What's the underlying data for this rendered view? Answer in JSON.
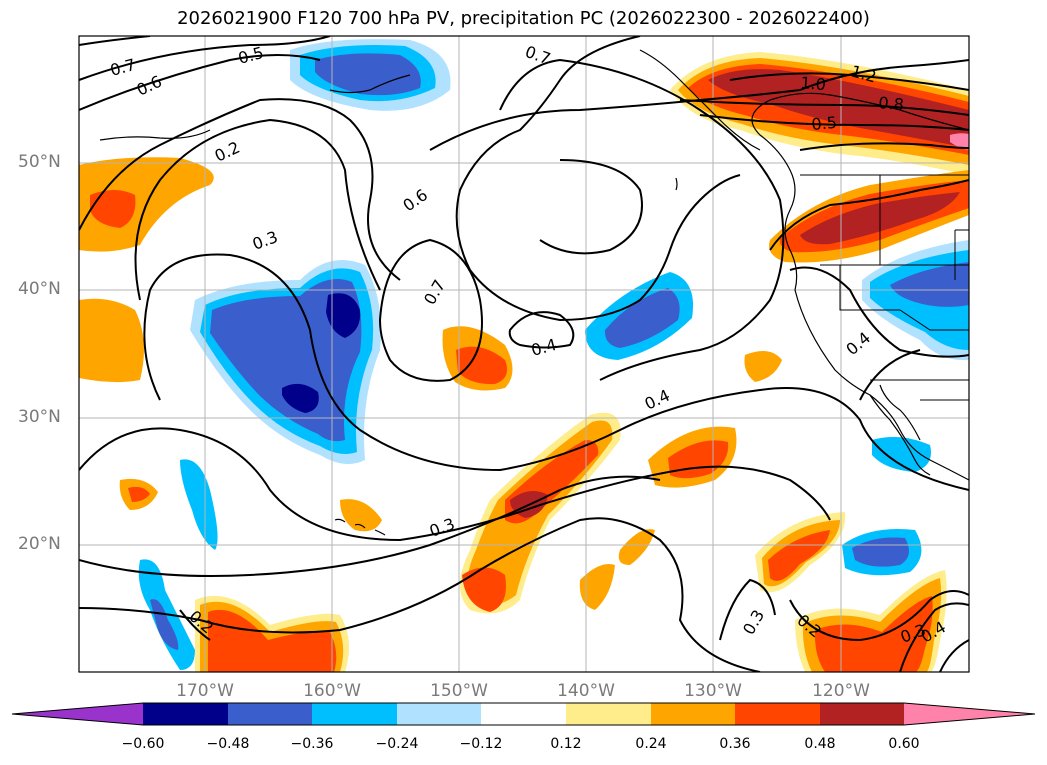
{
  "title": "2026021900 F120 700 hPa PV, precipitation PC (2026022300 - 2026022400)",
  "latitude_labels": [
    "50°N",
    "40°N",
    "30°N",
    "20°N"
  ],
  "longitude_labels": [
    "170°W",
    "160°W",
    "150°W",
    "140°W",
    "130°W",
    "120°W"
  ],
  "colorbar": {
    "ticks": [
      "−0.60",
      "−0.48",
      "−0.36",
      "−0.24",
      "−0.12",
      "0.12",
      "0.24",
      "0.36",
      "0.48",
      "0.60"
    ],
    "colors": [
      "#9933cc",
      "#00008b",
      "#3a5fcd",
      "#00bfff",
      "#b0e2ff",
      "#ffffff",
      "#ffec8b",
      "#ffa500",
      "#ff4500",
      "#b22222",
      "#ff82ab"
    ]
  },
  "contour_labels": [
    "0.7",
    "0.6",
    "0.5",
    "0.2",
    "0.3",
    "0.6",
    "0.7",
    "0.7",
    "0.4",
    "0.4",
    "0.3",
    "0.2",
    "0.3",
    "0.2",
    "0.3",
    "0.4",
    "1.0",
    "1.2",
    "0.8",
    "0.5",
    "0.4"
  ]
}
